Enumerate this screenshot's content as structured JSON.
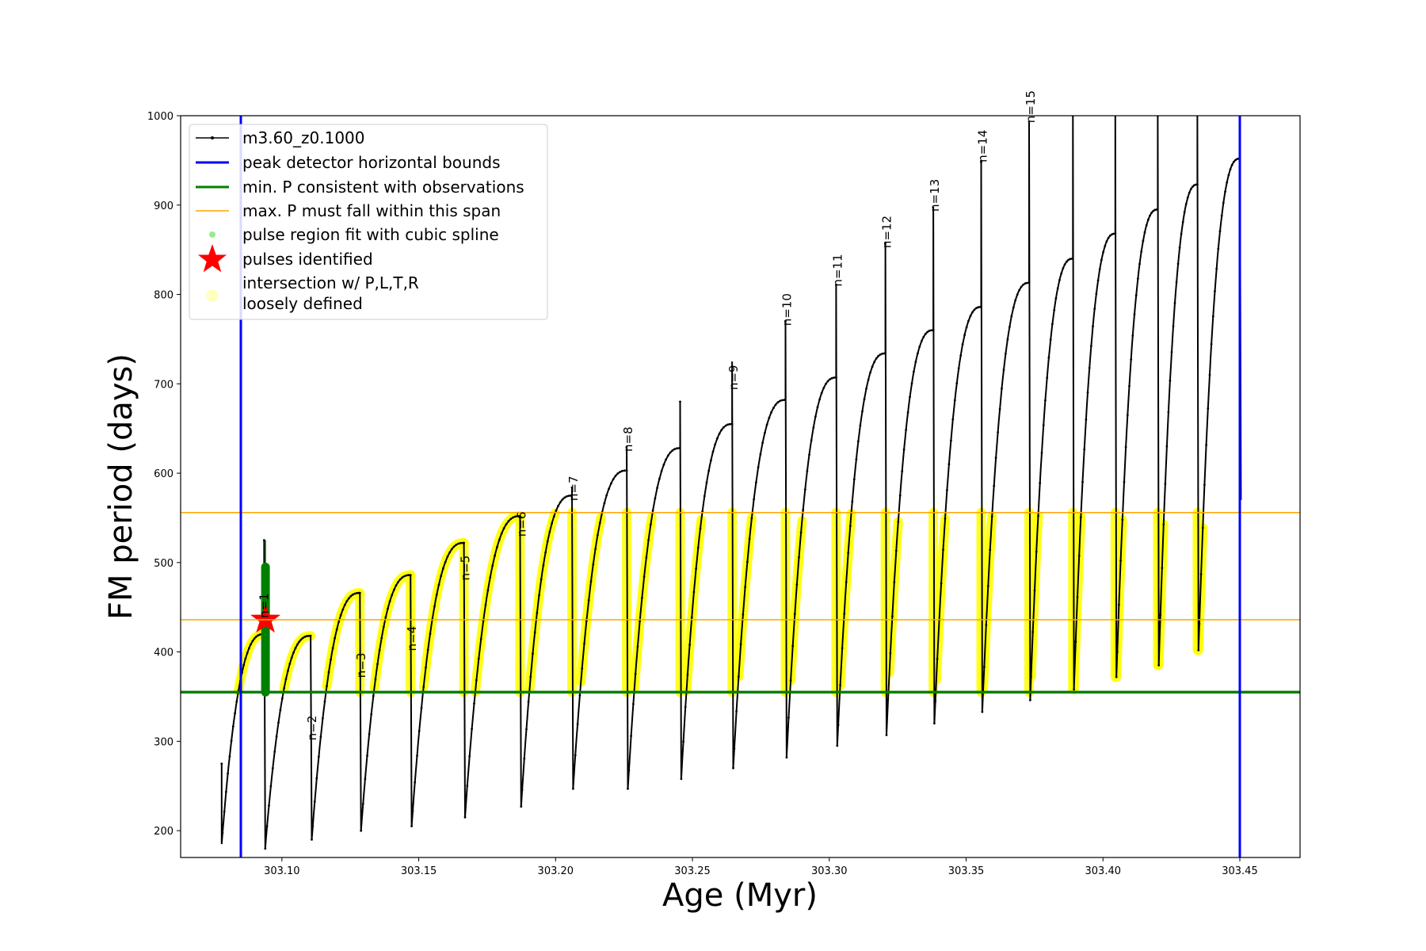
{
  "chart_data": {
    "type": "line",
    "xlabel": "Age (Myr)",
    "ylabel": "FM period (days)",
    "xlim": [
      303.063,
      303.472
    ],
    "ylim": [
      170,
      1000
    ],
    "xticks": [
      303.1,
      303.15,
      303.2,
      303.25,
      303.3,
      303.35,
      303.4,
      303.45
    ],
    "xtick_labels": [
      "303.10",
      "303.15",
      "303.20",
      "303.25",
      "303.30",
      "303.35",
      "303.40",
      "303.45"
    ],
    "yticks": [
      200,
      300,
      400,
      500,
      600,
      700,
      800,
      900,
      1000
    ],
    "ytick_labels": [
      "200",
      "300",
      "400",
      "500",
      "600",
      "700",
      "800",
      "900",
      "1000"
    ],
    "legend": {
      "location": "upper-left",
      "entries": [
        {
          "label": "m3.60_z0.1000",
          "color": "#000000",
          "marker": "line-dot"
        },
        {
          "label": "peak detector horizontal bounds",
          "color": "#0000ff",
          "marker": "line"
        },
        {
          "label": "min. P consistent with observations",
          "color": "#008000",
          "marker": "line"
        },
        {
          "label": "max. P must fall within this span",
          "color": "#ffa500",
          "marker": "thin-line"
        },
        {
          "label": "pulse region fit with cubic spline",
          "color": "#90ee90",
          "marker": "dot"
        },
        {
          "label": "pulses identified",
          "color": "#ff0000",
          "marker": "star"
        },
        {
          "label": "intersection w/ P,L,T,R",
          "label2": "loosely defined",
          "color": "#ffffc0",
          "marker": "circle"
        }
      ]
    },
    "vertical_bounds": {
      "color": "#0000ff",
      "x": [
        303.085,
        303.45
      ]
    },
    "min_period_line": {
      "color": "#008000",
      "y": 355
    },
    "max_period_span": {
      "color": "#ffa500",
      "y": [
        436,
        556
      ]
    },
    "series_color": "#000000",
    "highlight_color": "#ffff00",
    "cycle_start": {
      "x": 303.078,
      "y": 275
    },
    "cycles": [
      {
        "n": 1,
        "x_start": 303.078,
        "y_start": 185,
        "x_end": 303.0935,
        "y_peak": 420,
        "y_spike": 525,
        "y_min_after": 180
      },
      {
        "n": 2,
        "x_end": 303.1105,
        "y_peak": 418,
        "y_spike": 418,
        "y_min_after": 190
      },
      {
        "n": 3,
        "x_end": 303.1285,
        "y_peak": 466,
        "y_spike": 466,
        "y_min_after": 200
      },
      {
        "n": 4,
        "x_end": 303.147,
        "y_peak": 486,
        "y_spike": 486,
        "y_min_after": 205
      },
      {
        "n": 5,
        "x_end": 303.1665,
        "y_peak": 522,
        "y_spike": 522,
        "y_min_after": 215
      },
      {
        "n": 6,
        "x_end": 303.187,
        "y_peak": 552,
        "y_spike": 552,
        "y_min_after": 227
      },
      {
        "n": 7,
        "x_end": 303.206,
        "y_peak": 575,
        "y_spike": 584,
        "y_min_after": 247
      },
      {
        "n": 8,
        "x_end": 303.226,
        "y_peak": 603,
        "y_spike": 630,
        "y_min_after": 247
      },
      {
        "n": null,
        "x_end": 303.2455,
        "y_peak": 628,
        "y_spike": 680,
        "y_min_after": 258
      },
      {
        "n": 9,
        "x_end": 303.2645,
        "y_peak": 655,
        "y_spike": 725,
        "y_min_after": 270
      },
      {
        "n": 10,
        "x_end": 303.284,
        "y_peak": 682,
        "y_spike": 770,
        "y_min_after": 282
      },
      {
        "n": 11,
        "x_end": 303.3025,
        "y_peak": 707,
        "y_spike": 812,
        "y_min_after": 295
      },
      {
        "n": 12,
        "x_end": 303.3205,
        "y_peak": 734,
        "y_spike": 858,
        "y_min_after": 307
      },
      {
        "n": 13,
        "x_end": 303.338,
        "y_peak": 760,
        "y_spike": 898,
        "y_min_after": 320
      },
      {
        "n": 14,
        "x_end": 303.3555,
        "y_peak": 786,
        "y_spike": 948,
        "y_min_after": 333
      },
      {
        "n": 15,
        "x_end": 303.373,
        "y_peak": 813,
        "y_spike": 993,
        "y_min_after": 346
      },
      {
        "n": null,
        "x_end": 303.389,
        "y_peak": 840,
        "y_spike": 1000,
        "y_min_after": 358
      },
      {
        "n": null,
        "x_end": 303.4045,
        "y_peak": 868,
        "y_spike": 1000,
        "y_min_after": 372
      },
      {
        "n": null,
        "x_end": 303.42,
        "y_peak": 895,
        "y_spike": 1000,
        "y_min_after": 385
      },
      {
        "n": null,
        "x_end": 303.4345,
        "y_peak": 923,
        "y_spike": 1000,
        "y_min_after": 402
      },
      {
        "n": null,
        "x_end": 303.45,
        "y_peak": 952,
        "y_spike": 985,
        "y_min_after": 570
      }
    ],
    "pulse_labels": [
      {
        "text": "n=1",
        "x": 303.095,
        "y": 452
      },
      {
        "text": "n=2",
        "x": 303.1125,
        "y": 315
      },
      {
        "text": "n=3",
        "x": 303.1305,
        "y": 385
      },
      {
        "text": "n=4",
        "x": 303.149,
        "y": 415
      },
      {
        "text": "n=5",
        "x": 303.1685,
        "y": 494
      },
      {
        "text": "n=6",
        "x": 303.189,
        "y": 543
      },
      {
        "text": "n=7",
        "x": 303.208,
        "y": 583
      },
      {
        "text": "n=8",
        "x": 303.228,
        "y": 638
      },
      {
        "text": "n=9",
        "x": 303.2665,
        "y": 707
      },
      {
        "text": "n=10",
        "x": 303.286,
        "y": 783
      },
      {
        "text": "n=11",
        "x": 303.3045,
        "y": 827
      },
      {
        "text": "n=12",
        "x": 303.3225,
        "y": 870
      },
      {
        "text": "n=13",
        "x": 303.34,
        "y": 911
      },
      {
        "text": "n=14",
        "x": 303.3575,
        "y": 966
      },
      {
        "text": "n=15",
        "x": 303.375,
        "y": 1010
      }
    ],
    "green_spline": {
      "x": 303.094,
      "y_low": 355,
      "y_high": 495,
      "y_whisker": 525
    },
    "pulse_star": {
      "x": 303.094,
      "y": 436
    }
  }
}
